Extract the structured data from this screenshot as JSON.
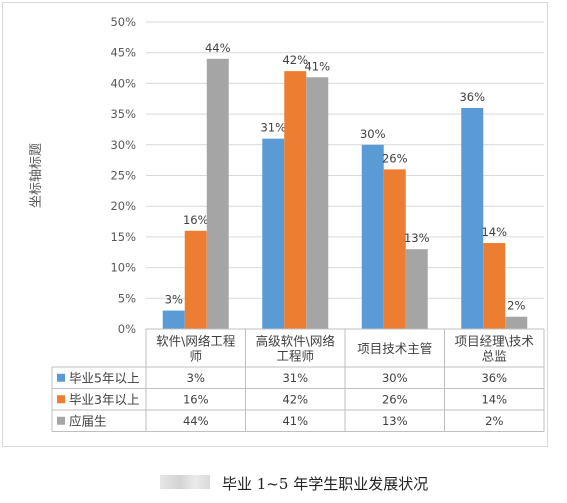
{
  "chart_data": {
    "type": "bar",
    "ylabel": "坐标轴标题",
    "ylim": [
      0,
      50
    ],
    "ytick_step": 5,
    "yticks": [
      "0%",
      "5%",
      "10%",
      "15%",
      "20%",
      "25%",
      "30%",
      "35%",
      "40%",
      "45%",
      "50%"
    ],
    "categories": [
      [
        "软件\\网络工程",
        "师"
      ],
      [
        "高级软件\\网络",
        "工程师"
      ],
      [
        "项目技术主管"
      ],
      [
        "项目经理\\技术",
        "总监"
      ]
    ],
    "series": [
      {
        "name": "毕业5年以上",
        "color": "#5b9bd5",
        "values": [
          3,
          31,
          30,
          36
        ],
        "labels": [
          "3%",
          "31%",
          "30%",
          "36%"
        ]
      },
      {
        "name": "毕业3年以上",
        "color": "#ed7d31",
        "values": [
          16,
          42,
          26,
          14
        ],
        "labels": [
          "16%",
          "42%",
          "26%",
          "14%"
        ]
      },
      {
        "name": "应届生",
        "color": "#a5a5a5",
        "values": [
          44,
          41,
          13,
          2
        ],
        "labels": [
          "44%",
          "41%",
          "13%",
          "2%"
        ]
      }
    ],
    "grid": true,
    "legend": "data-table"
  },
  "caption": "毕业 1~5 年学生职业发展状况"
}
